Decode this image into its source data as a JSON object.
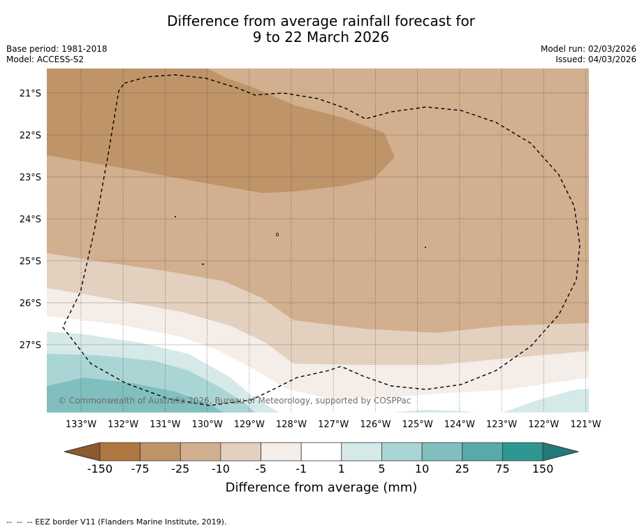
{
  "title": {
    "line1": "Difference from average rainfall forecast for",
    "line2": "9 to 22 March 2026"
  },
  "meta_left": {
    "base_period": "Base period: 1981-2018",
    "model": "Model: ACCESS-S2"
  },
  "meta_right": {
    "model_run": "Model run: 02/03/2026",
    "issued": "Issued: 04/03/2026"
  },
  "map": {
    "lat_labels": [
      "21°S",
      "22°S",
      "23°S",
      "24°S",
      "25°S",
      "26°S",
      "27°S"
    ],
    "lon_labels": [
      "133°W",
      "132°W",
      "131°W",
      "130°W",
      "129°W",
      "128°W",
      "127°W",
      "126°W",
      "125°W",
      "124°W",
      "123°W",
      "122°W",
      "121°W"
    ],
    "copyright": "© Commonwealth of Australia 2026, Bureau of Meteorology, supported by COSPPac"
  },
  "legend": {
    "title": "Difference from average (mm)",
    "tick_labels": [
      "-150",
      "-75",
      "-25",
      "-10",
      "-5",
      "-1",
      "1",
      "5",
      "10",
      "25",
      "75",
      "150"
    ],
    "colors": {
      "lt_neg150": "#8c5a2e",
      "neg150_neg75": "#af773f",
      "neg75_neg25": "#c09469",
      "neg25_neg10": "#d2af8f",
      "neg10_neg5": "#e3d0bf",
      "neg5_neg1": "#f4ede8",
      "neg1_pos1": "#ffffff",
      "pos1_pos5": "#d5e9e9",
      "pos5_pos10": "#aad5d5",
      "pos10_pos25": "#80bfbe",
      "pos25_pos75": "#56abaa",
      "pos75_pos150": "#2f9792",
      "gt_pos150": "#237a78"
    }
  },
  "footnote": "--  --  -- EEZ border V11 (Flanders Marine Institute, 2019)."
}
